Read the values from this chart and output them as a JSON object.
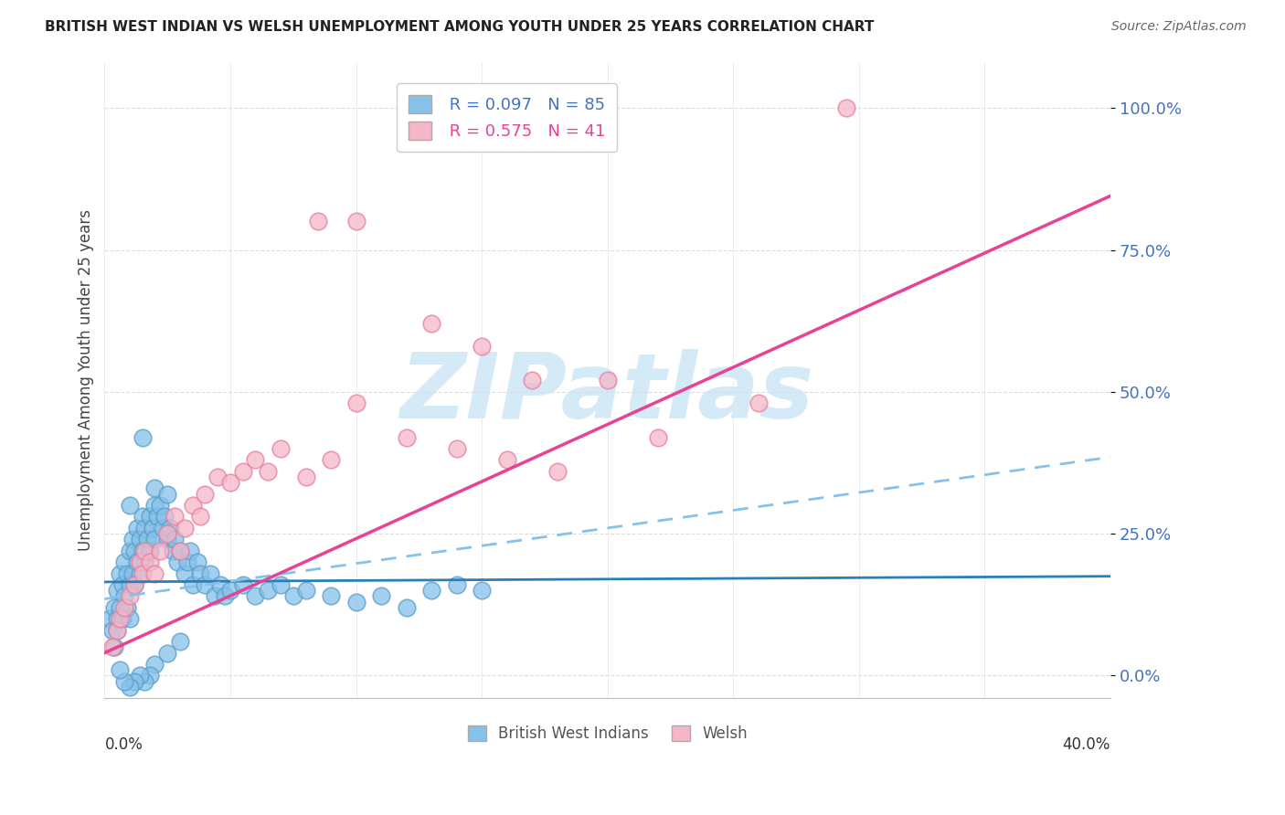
{
  "title": "BRITISH WEST INDIAN VS WELSH UNEMPLOYMENT AMONG YOUTH UNDER 25 YEARS CORRELATION CHART",
  "source": "Source: ZipAtlas.com",
  "ylabel": "Unemployment Among Youth under 25 years",
  "xlim": [
    0.0,
    0.4
  ],
  "ylim": [
    -0.04,
    1.08
  ],
  "yticks": [
    0.0,
    0.25,
    0.5,
    0.75,
    1.0
  ],
  "ytick_labels": [
    "0.0%",
    "25.0%",
    "50.0%",
    "75.0%",
    "100.0%"
  ],
  "color_blue": "#85c1e9",
  "color_blue_edge": "#5b9ec9",
  "color_pink": "#f5b7c8",
  "color_pink_edge": "#e87fa0",
  "color_blue_solid_line": "#2980b9",
  "color_blue_dashed_line": "#85c1e9",
  "color_pink_solid_line": "#e84393",
  "background_color": "#ffffff",
  "grid_color": "#dddddd",
  "watermark": "ZIPatlas",
  "watermark_color": "#d5eaf7",
  "blue_solid_line": [
    0.0,
    0.165,
    0.4,
    0.175
  ],
  "blue_dashed_line": [
    0.0,
    0.135,
    0.4,
    0.385
  ],
  "pink_solid_line": [
    0.0,
    0.04,
    0.4,
    0.845
  ],
  "blue_x": [
    0.002,
    0.003,
    0.004,
    0.004,
    0.005,
    0.005,
    0.005,
    0.006,
    0.006,
    0.007,
    0.007,
    0.008,
    0.008,
    0.009,
    0.009,
    0.01,
    0.01,
    0.01,
    0.011,
    0.011,
    0.012,
    0.012,
    0.013,
    0.013,
    0.014,
    0.014,
    0.015,
    0.015,
    0.016,
    0.016,
    0.017,
    0.018,
    0.018,
    0.019,
    0.02,
    0.02,
    0.021,
    0.022,
    0.023,
    0.024,
    0.025,
    0.026,
    0.027,
    0.028,
    0.029,
    0.03,
    0.032,
    0.033,
    0.034,
    0.035,
    0.037,
    0.038,
    0.04,
    0.042,
    0.044,
    0.046,
    0.048,
    0.05,
    0.055,
    0.06,
    0.065,
    0.07,
    0.075,
    0.08,
    0.09,
    0.1,
    0.11,
    0.12,
    0.13,
    0.14,
    0.15,
    0.03,
    0.025,
    0.02,
    0.018,
    0.016,
    0.014,
    0.012,
    0.01,
    0.008,
    0.006,
    0.015,
    0.02,
    0.025,
    0.01
  ],
  "blue_y": [
    0.1,
    0.08,
    0.12,
    0.05,
    0.15,
    0.1,
    0.08,
    0.18,
    0.12,
    0.16,
    0.1,
    0.2,
    0.14,
    0.18,
    0.12,
    0.22,
    0.16,
    0.1,
    0.24,
    0.18,
    0.22,
    0.16,
    0.26,
    0.2,
    0.24,
    0.18,
    0.28,
    0.22,
    0.26,
    0.2,
    0.24,
    0.28,
    0.22,
    0.26,
    0.3,
    0.24,
    0.28,
    0.3,
    0.26,
    0.28,
    0.24,
    0.26,
    0.22,
    0.24,
    0.2,
    0.22,
    0.18,
    0.2,
    0.22,
    0.16,
    0.2,
    0.18,
    0.16,
    0.18,
    0.14,
    0.16,
    0.14,
    0.15,
    0.16,
    0.14,
    0.15,
    0.16,
    0.14,
    0.15,
    0.14,
    0.13,
    0.14,
    0.12,
    0.15,
    0.16,
    0.15,
    0.06,
    0.04,
    0.02,
    0.0,
    -0.01,
    0.0,
    -0.01,
    -0.02,
    -0.01,
    0.01,
    0.42,
    0.33,
    0.32,
    0.3
  ],
  "pink_x": [
    0.003,
    0.005,
    0.006,
    0.008,
    0.01,
    0.012,
    0.014,
    0.015,
    0.016,
    0.018,
    0.02,
    0.022,
    0.025,
    0.028,
    0.03,
    0.032,
    0.035,
    0.038,
    0.04,
    0.045,
    0.05,
    0.055,
    0.06,
    0.065,
    0.07,
    0.08,
    0.09,
    0.1,
    0.12,
    0.14,
    0.16,
    0.18,
    0.22,
    0.26,
    0.295,
    0.085,
    0.1,
    0.13,
    0.15,
    0.17,
    0.2
  ],
  "pink_y": [
    0.05,
    0.08,
    0.1,
    0.12,
    0.14,
    0.16,
    0.2,
    0.18,
    0.22,
    0.2,
    0.18,
    0.22,
    0.25,
    0.28,
    0.22,
    0.26,
    0.3,
    0.28,
    0.32,
    0.35,
    0.34,
    0.36,
    0.38,
    0.36,
    0.4,
    0.35,
    0.38,
    0.48,
    0.42,
    0.4,
    0.38,
    0.36,
    0.42,
    0.48,
    1.0,
    0.8,
    0.8,
    0.62,
    0.58,
    0.52,
    0.52
  ]
}
